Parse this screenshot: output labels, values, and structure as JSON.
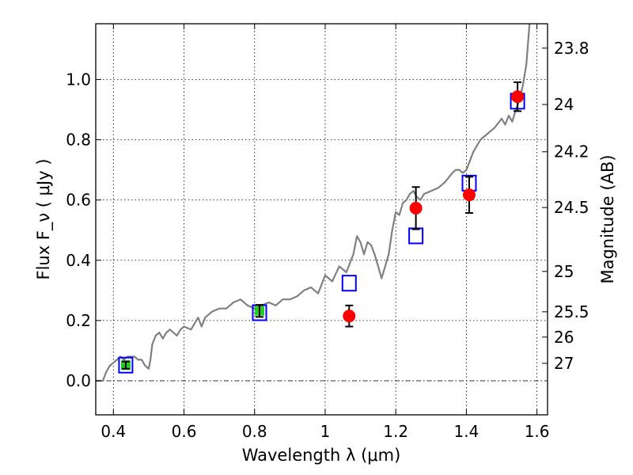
{
  "chart_data": {
    "type": "scatter",
    "title": "",
    "xlabel": "Wavelength λ (μm)",
    "ylabel": "Flux F_ν ( μJy )",
    "ylabel_right": "Magnitude (AB)",
    "xlim": [
      0.35,
      1.63
    ],
    "ylim": [
      -0.113,
      1.185
    ],
    "grid": true,
    "x_ticks": [
      {
        "value": 0.4,
        "label": "0.4"
      },
      {
        "value": 0.6,
        "label": "0.6"
      },
      {
        "value": 0.8,
        "label": "0.8"
      },
      {
        "value": 1.0,
        "label": "1"
      },
      {
        "value": 1.2,
        "label": "1.2"
      },
      {
        "value": 1.4,
        "label": "1.4"
      },
      {
        "value": 1.6,
        "label": "1.6"
      }
    ],
    "y_ticks": [
      {
        "value": 0.0,
        "label": "0.0"
      },
      {
        "value": 0.2,
        "label": "0.2"
      },
      {
        "value": 0.4,
        "label": "0.4"
      },
      {
        "value": 0.6,
        "label": "0.6"
      },
      {
        "value": 0.8,
        "label": "0.8"
      },
      {
        "value": 1.0,
        "label": "1.0"
      }
    ],
    "right_ticks": [
      {
        "flux": 1.104,
        "label": "23.8"
      },
      {
        "flux": 0.917,
        "label": "24"
      },
      {
        "flux": 0.76,
        "label": "24.2"
      },
      {
        "flux": 0.575,
        "label": "24.5"
      },
      {
        "flux": 0.363,
        "label": "25"
      },
      {
        "flux": 0.229,
        "label": "25.5"
      },
      {
        "flux": 0.145,
        "label": "26"
      },
      {
        "flux": 0.058,
        "label": "27"
      }
    ],
    "model_spectrum": {
      "color": "#808080",
      "x": [
        0.35,
        0.37,
        0.38,
        0.39,
        0.4,
        0.41,
        0.42,
        0.43,
        0.44,
        0.45,
        0.46,
        0.47,
        0.48,
        0.49,
        0.5,
        0.505,
        0.51,
        0.52,
        0.53,
        0.54,
        0.55,
        0.56,
        0.57,
        0.58,
        0.59,
        0.6,
        0.62,
        0.64,
        0.65,
        0.66,
        0.68,
        0.7,
        0.72,
        0.74,
        0.76,
        0.78,
        0.8,
        0.82,
        0.84,
        0.86,
        0.88,
        0.9,
        0.92,
        0.94,
        0.96,
        0.98,
        1.0,
        1.02,
        1.04,
        1.06,
        1.08,
        1.09,
        1.1,
        1.11,
        1.12,
        1.13,
        1.14,
        1.15,
        1.16,
        1.18,
        1.19,
        1.2,
        1.21,
        1.22,
        1.23,
        1.24,
        1.25,
        1.26,
        1.27,
        1.28,
        1.3,
        1.32,
        1.34,
        1.36,
        1.37,
        1.38,
        1.39,
        1.4,
        1.42,
        1.44,
        1.46,
        1.48,
        1.5,
        1.51,
        1.52,
        1.53,
        1.54,
        1.55,
        1.56,
        1.57,
        1.58,
        1.585,
        1.59,
        1.595,
        1.6
      ],
      "y": [
        0.0,
        0.0,
        0.03,
        0.05,
        0.06,
        0.07,
        0.08,
        0.07,
        0.08,
        0.08,
        0.08,
        0.07,
        0.07,
        0.05,
        0.04,
        0.07,
        0.12,
        0.15,
        0.16,
        0.14,
        0.16,
        0.17,
        0.16,
        0.15,
        0.17,
        0.18,
        0.17,
        0.21,
        0.18,
        0.21,
        0.23,
        0.24,
        0.24,
        0.26,
        0.27,
        0.25,
        0.24,
        0.25,
        0.26,
        0.25,
        0.27,
        0.27,
        0.28,
        0.3,
        0.31,
        0.29,
        0.35,
        0.33,
        0.38,
        0.36,
        0.42,
        0.48,
        0.46,
        0.42,
        0.46,
        0.45,
        0.42,
        0.38,
        0.34,
        0.42,
        0.5,
        0.56,
        0.55,
        0.59,
        0.6,
        0.62,
        0.63,
        0.61,
        0.6,
        0.62,
        0.63,
        0.64,
        0.66,
        0.69,
        0.7,
        0.7,
        0.69,
        0.7,
        0.76,
        0.8,
        0.82,
        0.84,
        0.87,
        0.85,
        0.88,
        0.86,
        0.9,
        0.93,
        0.98,
        1.05,
        1.2,
        1.35,
        1.2,
        1.3,
        1.38
      ]
    },
    "series": [
      {
        "marker": "open-square",
        "color": "#0000ff",
        "points": [
          {
            "x": 0.435,
            "y": 0.052
          },
          {
            "x": 0.814,
            "y": 0.226
          },
          {
            "x": 1.068,
            "y": 0.324
          },
          {
            "x": 1.257,
            "y": 0.481
          },
          {
            "x": 1.408,
            "y": 0.656
          },
          {
            "x": 1.545,
            "y": 0.928
          }
        ]
      },
      {
        "marker": "filled-circle",
        "color": "#ff0000",
        "points": [
          {
            "x": 1.068,
            "y": 0.215,
            "err": 0.035
          },
          {
            "x": 1.257,
            "y": 0.573,
            "err": 0.07
          },
          {
            "x": 1.408,
            "y": 0.617,
            "err": 0.06
          },
          {
            "x": 1.545,
            "y": 0.943,
            "err": 0.048
          }
        ]
      },
      {
        "marker": "filled-square",
        "color": "#22cc22",
        "points": [
          {
            "x": 0.435,
            "y": 0.052,
            "err": 0.012
          },
          {
            "x": 0.814,
            "y": 0.232,
            "err": 0.02
          }
        ]
      }
    ],
    "zero_line": {
      "y": 0.0,
      "style": "dash-dot"
    }
  }
}
